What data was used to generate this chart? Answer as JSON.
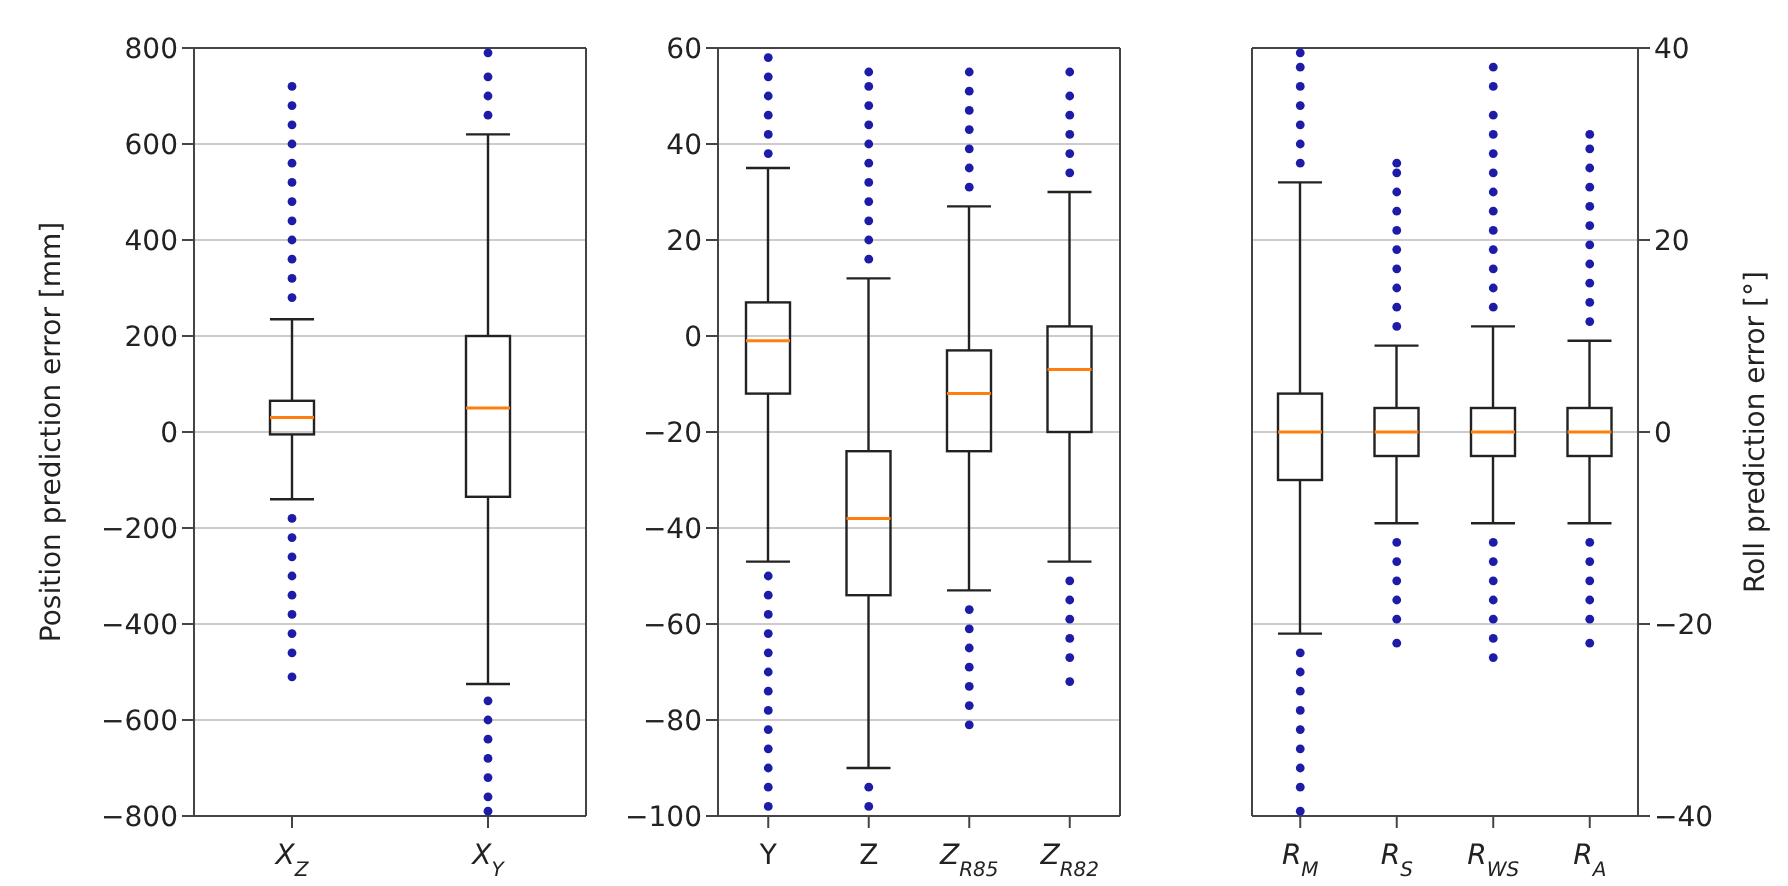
{
  "chart_data": [
    {
      "type": "box",
      "ylabel": "Position prediction error [mm]",
      "categories": [
        "X$_{Z}$",
        "X$_{Y}$"
      ],
      "ylim": [
        -800,
        800
      ],
      "yticks": [
        -800,
        -600,
        -400,
        -200,
        0,
        200,
        400,
        600,
        800
      ],
      "grid": "y",
      "series": [
        {
          "color": "#222222",
          "boxes": [
            {
              "low": -140,
              "q1": -5,
              "median": 30,
              "q3": 65,
              "high": 235,
              "outliers": [
                280,
                320,
                360,
                400,
                440,
                480,
                520,
                560,
                600,
                640,
                680,
                720,
                -180,
                -220,
                -260,
                -300,
                -340,
                -380,
                -420,
                -460,
                -510
              ]
            },
            {
              "low": -525,
              "q1": -135,
              "median": 50,
              "q3": 200,
              "high": 620,
              "outliers": [
                660,
                700,
                740,
                790,
                -560,
                -600,
                -640,
                -680,
                -720,
                -760,
                -790
              ]
            }
          ]
        }
      ]
    },
    {
      "type": "box",
      "categories": [
        "Y",
        "Z",
        "Z$_{R85}$",
        "Z$_{R82}$"
      ],
      "ylim": [
        -100,
        60
      ],
      "yticks": [
        -100,
        -80,
        -60,
        -40,
        -20,
        0,
        20,
        40,
        60
      ],
      "grid": "y",
      "series": [
        {
          "color": "#222222",
          "boxes": [
            {
              "low": -47,
              "q1": -12,
              "median": -1,
              "q3": 7,
              "high": 35,
              "outliers": [
                38,
                42,
                46,
                50,
                54,
                58,
                -50,
                -54,
                -58,
                -62,
                -66,
                -70,
                -74,
                -78,
                -82,
                -86,
                -90,
                -94,
                -98
              ]
            },
            {
              "low": -90,
              "q1": -54,
              "median": -38,
              "q3": -24,
              "high": 12,
              "outliers": [
                16,
                20,
                24,
                28,
                32,
                36,
                40,
                44,
                48,
                52,
                55,
                -94,
                -98
              ]
            },
            {
              "low": -53,
              "q1": -24,
              "median": -12,
              "q3": -3,
              "high": 27,
              "outliers": [
                31,
                35,
                39,
                43,
                47,
                51,
                55,
                -57,
                -61,
                -65,
                -69,
                -73,
                -77,
                -81
              ]
            },
            {
              "low": -47,
              "q1": -20,
              "median": -7,
              "q3": 2,
              "high": 30,
              "outliers": [
                34,
                38,
                42,
                46,
                50,
                55,
                -51,
                -55,
                -59,
                -63,
                -67,
                -72
              ]
            }
          ]
        }
      ]
    },
    {
      "type": "box",
      "y2label": "Roll prediction error [°]",
      "categories": [
        "R$_{M}$",
        "R$_{S}$",
        "R$_{WS}$",
        "R$_{A}$"
      ],
      "y2lim": [
        -40,
        40
      ],
      "y2ticks": [
        -40,
        -20,
        0,
        20,
        40
      ],
      "grid": "y",
      "series": [
        {
          "color": "#222222",
          "axis": "y2",
          "boxes": [
            {
              "low": -21,
              "q1": -5,
              "median": 0,
              "q3": 4,
              "high": 26,
              "outliers": [
                28,
                30,
                32,
                34,
                36,
                38,
                39.5,
                -23,
                -25,
                -27,
                -29,
                -31,
                -33,
                -35,
                -37,
                -39.5
              ]
            },
            {
              "low": -9.5,
              "q1": -2.5,
              "median": 0,
              "q3": 2.5,
              "high": 9,
              "outliers": [
                11,
                13,
                15,
                17,
                19,
                21,
                23,
                25,
                27,
                28,
                -11.5,
                -13.5,
                -15.5,
                -17.5,
                -19.5,
                -22
              ]
            },
            {
              "low": -9.5,
              "q1": -2.5,
              "median": 0,
              "q3": 2.5,
              "high": 11,
              "outliers": [
                13,
                15,
                17,
                19,
                21,
                23,
                25,
                27,
                29,
                31,
                33,
                36,
                38,
                -11.5,
                -13.5,
                -15.5,
                -17.5,
                -19.5,
                -21.5,
                -23.5
              ]
            },
            {
              "low": -9.5,
              "q1": -2.5,
              "median": 0,
              "q3": 2.5,
              "high": 9.5,
              "outliers": [
                11.5,
                13.5,
                15.5,
                17.5,
                19.5,
                21.5,
                23.5,
                25.5,
                27.5,
                29.5,
                31,
                -11.5,
                -13.5,
                -15.5,
                -17.5,
                -19.5,
                -22
              ]
            }
          ]
        }
      ]
    }
  ]
}
